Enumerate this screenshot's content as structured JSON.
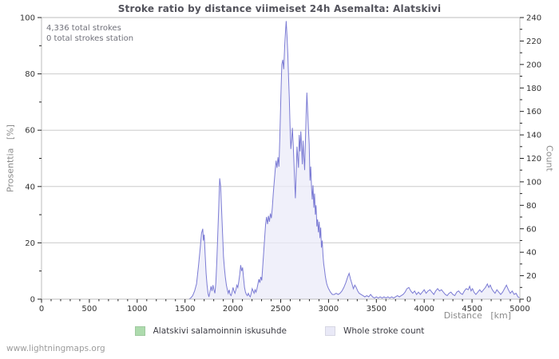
{
  "watermark": "www.lightningmaps.org",
  "chart_data": {
    "type": "area",
    "title": "Stroke ratio by distance viimeiset 24h Asemalta: Alatskivi",
    "annotations": [
      "4,336 total strokes",
      "0 total strokes station"
    ],
    "xlabel": "Distance   [km]",
    "ylabel_left": "Prosenttia   [%]",
    "ylabel_right": "Count",
    "xlim": [
      0,
      5000
    ],
    "ylim_left": [
      0,
      100
    ],
    "ylim_right": [
      0,
      240
    ],
    "x_major_ticks": [
      0,
      500,
      1000,
      1500,
      2000,
      2500,
      3000,
      3500,
      4000,
      4500,
      5000
    ],
    "x_minor_step": 100,
    "y_left_major_ticks": [
      0,
      20,
      40,
      60,
      80,
      100
    ],
    "y_left_minor_step": 10,
    "y_right_major_ticks": [
      0,
      20,
      40,
      60,
      80,
      100,
      120,
      140,
      160,
      180,
      200,
      220,
      240
    ],
    "y_right_minor_step": 10,
    "grid": "horizontal",
    "legend_position": "bottom-center",
    "colors": {
      "grid": "#cbcbcb",
      "border": "#bdbdbd",
      "tick": "#222222",
      "tick_label": "#333333",
      "ratio_green": "#addbad",
      "count_fill": "#ebebf8",
      "count_line": "#7b7bd4"
    },
    "legend": [
      {
        "label": "Alatskivi salamoinnin iskusuhde",
        "swatch": "#addbad"
      },
      {
        "label": "Whole stroke count",
        "swatch": "#e9e9f7"
      }
    ],
    "series": [
      {
        "name": "Alatskivi salamoinnin iskusuhde",
        "axis": "left",
        "type": "area",
        "color": "#addbad",
        "points": [
          [
            0,
            0
          ],
          [
            5000,
            0
          ]
        ]
      },
      {
        "name": "Whole stroke count",
        "axis": "right",
        "type": "area",
        "line_color": "#7b7bd4",
        "fill_color": "#ebebf8",
        "points": [
          [
            0,
            0
          ],
          [
            300,
            0
          ],
          [
            600,
            0
          ],
          [
            900,
            0
          ],
          [
            1200,
            0
          ],
          [
            1450,
            0
          ],
          [
            1540,
            0
          ],
          [
            1560,
            1
          ],
          [
            1580,
            3
          ],
          [
            1600,
            7
          ],
          [
            1620,
            13
          ],
          [
            1640,
            28
          ],
          [
            1660,
            45
          ],
          [
            1672,
            56
          ],
          [
            1685,
            60
          ],
          [
            1692,
            50
          ],
          [
            1700,
            55
          ],
          [
            1710,
            38
          ],
          [
            1720,
            22
          ],
          [
            1730,
            12
          ],
          [
            1740,
            5
          ],
          [
            1750,
            2
          ],
          [
            1762,
            7
          ],
          [
            1772,
            11
          ],
          [
            1782,
            7
          ],
          [
            1792,
            12
          ],
          [
            1802,
            8
          ],
          [
            1812,
            5
          ],
          [
            1822,
            14
          ],
          [
            1832,
            32
          ],
          [
            1842,
            55
          ],
          [
            1852,
            78
          ],
          [
            1862,
            103
          ],
          [
            1872,
            96
          ],
          [
            1882,
            76
          ],
          [
            1892,
            56
          ],
          [
            1902,
            36
          ],
          [
            1912,
            26
          ],
          [
            1922,
            18
          ],
          [
            1932,
            12
          ],
          [
            1942,
            8
          ],
          [
            1952,
            5
          ],
          [
            1962,
            8
          ],
          [
            1972,
            4
          ],
          [
            1982,
            3
          ],
          [
            1992,
            6
          ],
          [
            2002,
            10
          ],
          [
            2012,
            7
          ],
          [
            2022,
            5
          ],
          [
            2032,
            8
          ],
          [
            2042,
            12
          ],
          [
            2052,
            10
          ],
          [
            2062,
            15
          ],
          [
            2072,
            21
          ],
          [
            2082,
            29
          ],
          [
            2092,
            24
          ],
          [
            2102,
            27
          ],
          [
            2112,
            18
          ],
          [
            2122,
            10
          ],
          [
            2132,
            6
          ],
          [
            2142,
            4
          ],
          [
            2152,
            3
          ],
          [
            2162,
            5
          ],
          [
            2172,
            3
          ],
          [
            2182,
            2
          ],
          [
            2192,
            5
          ],
          [
            2202,
            9
          ],
          [
            2212,
            7
          ],
          [
            2222,
            5
          ],
          [
            2232,
            8
          ],
          [
            2242,
            6
          ],
          [
            2252,
            9
          ],
          [
            2262,
            13
          ],
          [
            2272,
            17
          ],
          [
            2282,
            14
          ],
          [
            2292,
            19
          ],
          [
            2302,
            16
          ],
          [
            2312,
            28
          ],
          [
            2322,
            40
          ],
          [
            2332,
            52
          ],
          [
            2342,
            64
          ],
          [
            2352,
            70
          ],
          [
            2362,
            64
          ],
          [
            2372,
            71
          ],
          [
            2382,
            66
          ],
          [
            2392,
            73
          ],
          [
            2402,
            69
          ],
          [
            2412,
            78
          ],
          [
            2422,
            90
          ],
          [
            2432,
            100
          ],
          [
            2442,
            110
          ],
          [
            2452,
            118
          ],
          [
            2462,
            112
          ],
          [
            2472,
            121
          ],
          [
            2482,
            113
          ],
          [
            2492,
            140
          ],
          [
            2502,
            172
          ],
          [
            2512,
            200
          ],
          [
            2522,
            204
          ],
          [
            2532,
            196
          ],
          [
            2542,
            216
          ],
          [
            2552,
            230
          ],
          [
            2558,
            237
          ],
          [
            2566,
            224
          ],
          [
            2574,
            209
          ],
          [
            2582,
            190
          ],
          [
            2590,
            171
          ],
          [
            2598,
            148
          ],
          [
            2606,
            128
          ],
          [
            2614,
            136
          ],
          [
            2622,
            146
          ],
          [
            2630,
            133
          ],
          [
            2638,
            118
          ],
          [
            2646,
            100
          ],
          [
            2654,
            86
          ],
          [
            2662,
            108
          ],
          [
            2670,
            130
          ],
          [
            2678,
            121
          ],
          [
            2686,
            112
          ],
          [
            2694,
            140
          ],
          [
            2702,
            126
          ],
          [
            2710,
            143
          ],
          [
            2718,
            131
          ],
          [
            2726,
            115
          ],
          [
            2734,
            135
          ],
          [
            2742,
            122
          ],
          [
            2750,
            110
          ],
          [
            2758,
            134
          ],
          [
            2766,
            158
          ],
          [
            2774,
            176
          ],
          [
            2782,
            160
          ],
          [
            2790,
            146
          ],
          [
            2798,
            132
          ],
          [
            2806,
            101
          ],
          [
            2814,
            113
          ],
          [
            2822,
            96
          ],
          [
            2830,
            85
          ],
          [
            2838,
            97
          ],
          [
            2846,
            78
          ],
          [
            2854,
            90
          ],
          [
            2862,
            72
          ],
          [
            2870,
            80
          ],
          [
            2878,
            62
          ],
          [
            2886,
            68
          ],
          [
            2894,
            57
          ],
          [
            2902,
            66
          ],
          [
            2910,
            52
          ],
          [
            2918,
            61
          ],
          [
            2926,
            44
          ],
          [
            2934,
            50
          ],
          [
            2942,
            37
          ],
          [
            2950,
            30
          ],
          [
            2958,
            25
          ],
          [
            2966,
            20
          ],
          [
            2974,
            16
          ],
          [
            2982,
            13
          ],
          [
            2990,
            11
          ],
          [
            3000,
            9
          ],
          [
            3020,
            6
          ],
          [
            3040,
            4
          ],
          [
            3060,
            4
          ],
          [
            3080,
            5
          ],
          [
            3100,
            4
          ],
          [
            3120,
            5
          ],
          [
            3140,
            7
          ],
          [
            3160,
            10
          ],
          [
            3180,
            14
          ],
          [
            3200,
            19
          ],
          [
            3215,
            22
          ],
          [
            3230,
            17
          ],
          [
            3245,
            13
          ],
          [
            3260,
            9
          ],
          [
            3275,
            12
          ],
          [
            3290,
            10
          ],
          [
            3305,
            7
          ],
          [
            3320,
            5
          ],
          [
            3340,
            4
          ],
          [
            3360,
            3
          ],
          [
            3380,
            2
          ],
          [
            3400,
            3
          ],
          [
            3420,
            2
          ],
          [
            3440,
            4
          ],
          [
            3460,
            2
          ],
          [
            3480,
            1
          ],
          [
            3500,
            2
          ],
          [
            3520,
            1
          ],
          [
            3540,
            2
          ],
          [
            3560,
            1
          ],
          [
            3580,
            2
          ],
          [
            3600,
            1
          ],
          [
            3620,
            2
          ],
          [
            3640,
            1
          ],
          [
            3660,
            2
          ],
          [
            3680,
            1
          ],
          [
            3700,
            2
          ],
          [
            3720,
            3
          ],
          [
            3740,
            2
          ],
          [
            3760,
            3
          ],
          [
            3780,
            4
          ],
          [
            3800,
            6
          ],
          [
            3820,
            9
          ],
          [
            3840,
            10
          ],
          [
            3860,
            7
          ],
          [
            3880,
            5
          ],
          [
            3900,
            7
          ],
          [
            3920,
            4
          ],
          [
            3940,
            6
          ],
          [
            3960,
            4
          ],
          [
            3980,
            6
          ],
          [
            4000,
            8
          ],
          [
            4020,
            5
          ],
          [
            4040,
            7
          ],
          [
            4060,
            8
          ],
          [
            4080,
            6
          ],
          [
            4100,
            4
          ],
          [
            4120,
            7
          ],
          [
            4140,
            9
          ],
          [
            4160,
            7
          ],
          [
            4180,
            8
          ],
          [
            4200,
            6
          ],
          [
            4220,
            4
          ],
          [
            4240,
            3
          ],
          [
            4260,
            5
          ],
          [
            4280,
            6
          ],
          [
            4300,
            4
          ],
          [
            4320,
            3
          ],
          [
            4340,
            6
          ],
          [
            4360,
            7
          ],
          [
            4380,
            5
          ],
          [
            4400,
            4
          ],
          [
            4420,
            7
          ],
          [
            4440,
            9
          ],
          [
            4460,
            8
          ],
          [
            4475,
            11
          ],
          [
            4490,
            7
          ],
          [
            4505,
            9
          ],
          [
            4520,
            6
          ],
          [
            4540,
            4
          ],
          [
            4560,
            6
          ],
          [
            4580,
            8
          ],
          [
            4600,
            6
          ],
          [
            4620,
            8
          ],
          [
            4640,
            10
          ],
          [
            4660,
            13
          ],
          [
            4675,
            10
          ],
          [
            4690,
            12
          ],
          [
            4705,
            9
          ],
          [
            4720,
            7
          ],
          [
            4740,
            5
          ],
          [
            4760,
            8
          ],
          [
            4780,
            6
          ],
          [
            4800,
            4
          ],
          [
            4820,
            6
          ],
          [
            4840,
            9
          ],
          [
            4860,
            12
          ],
          [
            4880,
            8
          ],
          [
            4900,
            5
          ],
          [
            4920,
            7
          ],
          [
            4940,
            4
          ],
          [
            4960,
            5
          ],
          [
            4980,
            2
          ],
          [
            5000,
            1
          ]
        ]
      }
    ]
  }
}
